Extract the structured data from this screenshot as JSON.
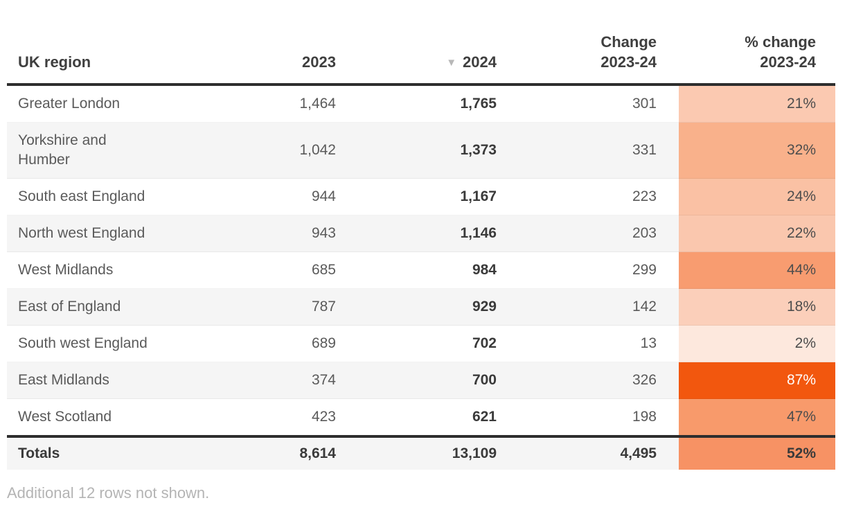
{
  "table": {
    "columns": [
      {
        "id": "region",
        "label": "UK region"
      },
      {
        "id": "y2023",
        "label": "2023"
      },
      {
        "id": "y2024",
        "label": "2024",
        "sorted": "desc",
        "sort_icon": "▼"
      },
      {
        "id": "change",
        "label": "Change\n2023-24"
      },
      {
        "id": "pct",
        "label": "% change\n2023-24"
      }
    ],
    "rows": [
      {
        "region": "Greater London",
        "y2023": "1,464",
        "y2024": "1,765",
        "change": "301",
        "pct": "21%",
        "pct_bg": "#FBC9B1",
        "pct_fg": "#4d4d4d"
      },
      {
        "region": "Yorkshire and\nHumber",
        "y2023": "1,042",
        "y2024": "1,373",
        "change": "331",
        "pct": "32%",
        "pct_bg": "#F9B18B",
        "pct_fg": "#4d4d4d"
      },
      {
        "region": "South east England",
        "y2023": "944",
        "y2024": "1,167",
        "change": "223",
        "pct": "24%",
        "pct_bg": "#FAC1A4",
        "pct_fg": "#4d4d4d"
      },
      {
        "region": "North west England",
        "y2023": "943",
        "y2024": "1,146",
        "change": "203",
        "pct": "22%",
        "pct_bg": "#FAC7AE",
        "pct_fg": "#4d4d4d"
      },
      {
        "region": "West Midlands",
        "y2023": "685",
        "y2024": "984",
        "change": "299",
        "pct": "44%",
        "pct_bg": "#F89C70",
        "pct_fg": "#4d4d4d"
      },
      {
        "region": "East of England",
        "y2023": "787",
        "y2024": "929",
        "change": "142",
        "pct": "18%",
        "pct_bg": "#FBCFBA",
        "pct_fg": "#4d4d4d"
      },
      {
        "region": "South west England",
        "y2023": "689",
        "y2024": "702",
        "change": "13",
        "pct": "2%",
        "pct_bg": "#FDE8DD",
        "pct_fg": "#4d4d4d"
      },
      {
        "region": "East Midlands",
        "y2023": "374",
        "y2024": "700",
        "change": "326",
        "pct": "87%",
        "pct_bg": "#F2570E",
        "pct_fg": "#ffffff"
      },
      {
        "region": "West Scotland",
        "y2023": "423",
        "y2024": "621",
        "change": "198",
        "pct": "47%",
        "pct_bg": "#F89A6B",
        "pct_fg": "#4d4d4d"
      }
    ],
    "totals": {
      "label": "Totals",
      "y2023": "8,614",
      "y2024": "13,109",
      "change": "4,495",
      "pct": "52%",
      "pct_bg": "#F79264",
      "pct_fg": "#3a3a3a"
    }
  },
  "footer": {
    "note": "Additional 12 rows not shown."
  },
  "colors": {
    "heatmap_max": "#F2570E",
    "heatmap_min": "#FDE8DD",
    "row_alt_bg": "#f5f5f5",
    "rule": "#2e2e2e",
    "header_text": "#3f3f3f",
    "body_text": "#5a5a5a",
    "note_text": "#b4b4b4",
    "sort_icon": "#b8b8b8"
  },
  "chart_data": {
    "type": "table",
    "title": "",
    "columns": [
      "UK region",
      "2023",
      "2024",
      "Change 2023-24",
      "% change 2023-24"
    ],
    "categories": [
      "Greater London",
      "Yorkshire and Humber",
      "South east England",
      "North west England",
      "West Midlands",
      "East of England",
      "South west England",
      "East Midlands",
      "West Scotland"
    ],
    "series": [
      {
        "name": "2023",
        "values": [
          1464,
          1042,
          944,
          943,
          685,
          787,
          689,
          374,
          423
        ]
      },
      {
        "name": "2024",
        "values": [
          1765,
          1373,
          1167,
          1146,
          984,
          929,
          702,
          700,
          621
        ]
      },
      {
        "name": "Change 2023-24",
        "values": [
          301,
          331,
          223,
          203,
          299,
          142,
          13,
          326,
          198
        ]
      },
      {
        "name": "% change 2023-24",
        "values": [
          21,
          32,
          24,
          22,
          44,
          18,
          2,
          87,
          47
        ]
      }
    ],
    "totals": {
      "2023": 8614,
      "2024": 13109,
      "Change 2023-24": 4495,
      "% change 2023-24": 52
    },
    "sort": {
      "column": "2024",
      "direction": "desc"
    },
    "heatmap_column": "% change 2023-24",
    "note": "Additional 12 rows not shown."
  }
}
